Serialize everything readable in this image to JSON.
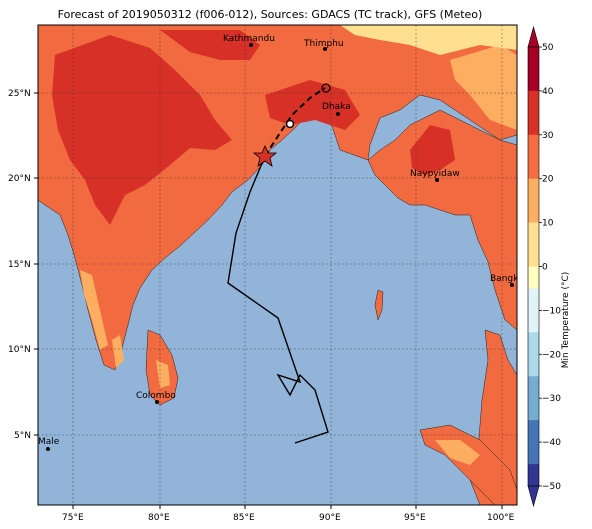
{
  "title": "Forecast of 2019050312 (f006-012), Sources: GDACS (TC track), GFS (Meteo)",
  "axes": {
    "x_ticks": [
      "75°E",
      "80°E",
      "85°E",
      "90°E",
      "95°E",
      "100°E"
    ],
    "y_ticks": [
      "25°N",
      "20°N",
      "15°N",
      "10°N",
      "5°N"
    ]
  },
  "cities": [
    {
      "name": "Kathmandu"
    },
    {
      "name": "Thimphu"
    },
    {
      "name": "Dhaka"
    },
    {
      "name": "Naypyidaw"
    },
    {
      "name": "Bangkok"
    },
    {
      "name": "Colombo"
    },
    {
      "name": "Male"
    }
  ],
  "colorbar": {
    "label": "Min Temperature (°C)",
    "ticks": [
      "50",
      "40",
      "30",
      "20",
      "10",
      "0",
      "−10",
      "−20",
      "−30",
      "−40",
      "−50"
    ],
    "colors": [
      "#a50026",
      "#d73027",
      "#f46d43",
      "#fdae61",
      "#fee090",
      "#ffffbf",
      "#e0f3f8",
      "#abd9e9",
      "#74add1",
      "#4575b4",
      "#313695"
    ]
  },
  "colors": {
    "ocean": "#91b4d8",
    "land_warm": "#f26a3f",
    "land_hot": "#d73027",
    "land_mild": "#fdae61",
    "land_cool": "#fee090"
  },
  "track": {
    "type": "tropical cyclone track",
    "marker": "star"
  }
}
